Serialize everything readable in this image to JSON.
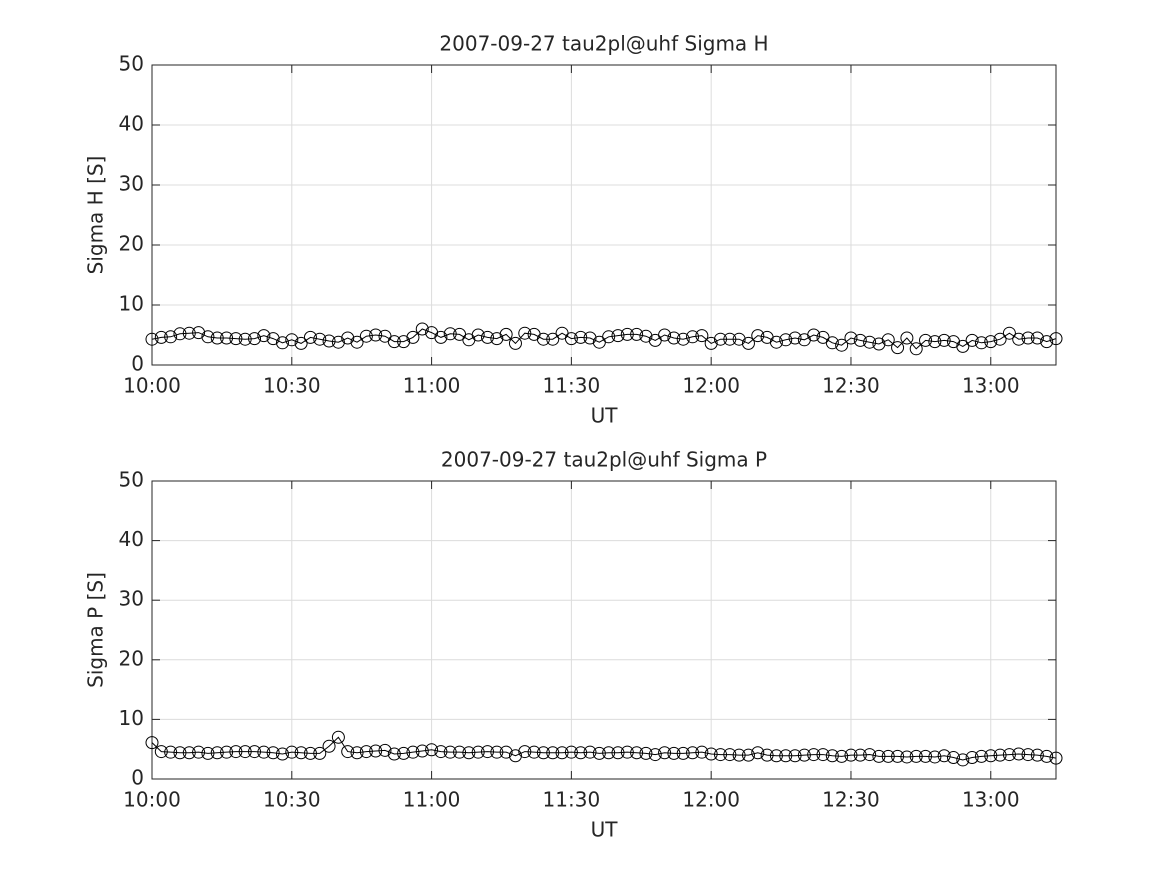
{
  "chart_data": [
    {
      "type": "line",
      "title": "2007-09-27  tau2pl@uhf Sigma H",
      "x_label": "UT",
      "y_label": "Sigma H [S]",
      "xlim": [
        "10:00",
        "13:14"
      ],
      "xticks": [
        "10:00",
        "10:30",
        "11:00",
        "11:30",
        "12:00",
        "12:30",
        "13:00"
      ],
      "ylim": [
        0,
        50
      ],
      "yticks": [
        0,
        10,
        20,
        30,
        40,
        50
      ],
      "grid": true,
      "marker": "circle",
      "x": [
        "10:00",
        "10:02",
        "10:04",
        "10:06",
        "10:08",
        "10:10",
        "10:12",
        "10:14",
        "10:16",
        "10:18",
        "10:20",
        "10:22",
        "10:24",
        "10:26",
        "10:28",
        "10:30",
        "10:32",
        "10:34",
        "10:36",
        "10:38",
        "10:40",
        "10:42",
        "10:44",
        "10:46",
        "10:48",
        "10:50",
        "10:52",
        "10:54",
        "10:56",
        "10:58",
        "11:00",
        "11:02",
        "11:04",
        "11:06",
        "11:08",
        "11:10",
        "11:12",
        "11:14",
        "11:16",
        "11:18",
        "11:20",
        "11:22",
        "11:24",
        "11:26",
        "11:28",
        "11:30",
        "11:32",
        "11:34",
        "11:36",
        "11:38",
        "11:40",
        "11:42",
        "11:44",
        "11:46",
        "11:48",
        "11:50",
        "11:52",
        "11:54",
        "11:56",
        "11:58",
        "12:00",
        "12:02",
        "12:04",
        "12:06",
        "12:08",
        "12:10",
        "12:12",
        "12:14",
        "12:16",
        "12:18",
        "12:20",
        "12:22",
        "12:24",
        "12:26",
        "12:28",
        "12:30",
        "12:32",
        "12:34",
        "12:36",
        "12:38",
        "12:40",
        "12:42",
        "12:44",
        "12:46",
        "12:48",
        "12:50",
        "12:52",
        "12:54",
        "12:56",
        "12:58",
        "13:00",
        "13:02",
        "13:04",
        "13:06",
        "13:08",
        "13:10",
        "13:12",
        "13:14"
      ],
      "series": [
        {
          "color": "#000000",
          "values": [
            4.3,
            4.6,
            4.7,
            5.2,
            5.3,
            5.4,
            4.7,
            4.5,
            4.5,
            4.4,
            4.3,
            4.4,
            4.9,
            4.4,
            3.7,
            4.2,
            3.6,
            4.6,
            4.3,
            4.0,
            3.8,
            4.5,
            3.8,
            4.8,
            5.0,
            4.8,
            3.9,
            3.9,
            4.6,
            6.0,
            5.4,
            4.6,
            5.2,
            5.1,
            4.2,
            5.0,
            4.6,
            4.4,
            5.1,
            3.6,
            5.3,
            5.1,
            4.3,
            4.3,
            5.3,
            4.4,
            4.6,
            4.5,
            3.8,
            4.7,
            4.9,
            5.1,
            5.1,
            4.8,
            4.1,
            5.0,
            4.5,
            4.3,
            4.7,
            4.9,
            3.6,
            4.3,
            4.3,
            4.3,
            3.6,
            4.9,
            4.6,
            3.8,
            4.2,
            4.5,
            4.2,
            5.0,
            4.6,
            3.7,
            3.3,
            4.5,
            4.1,
            3.8,
            3.5,
            4.2,
            2.9,
            4.5,
            2.7,
            4.1,
            3.9,
            4.1,
            3.9,
            3.1,
            4.1,
            3.7,
            3.9,
            4.3,
            5.3,
            4.3,
            4.5,
            4.5,
            3.9,
            4.4
          ]
        }
      ]
    },
    {
      "type": "line",
      "title": "2007-09-27  tau2pl@uhf Sigma P",
      "x_label": "UT",
      "y_label": "Sigma P [S]",
      "xlim": [
        "10:00",
        "13:14"
      ],
      "xticks": [
        "10:00",
        "10:30",
        "11:00",
        "11:30",
        "12:00",
        "12:30",
        "13:00"
      ],
      "ylim": [
        0,
        50
      ],
      "yticks": [
        0,
        10,
        20,
        30,
        40,
        50
      ],
      "grid": true,
      "marker": "circle",
      "x": [
        "10:00",
        "10:02",
        "10:04",
        "10:06",
        "10:08",
        "10:10",
        "10:12",
        "10:14",
        "10:16",
        "10:18",
        "10:20",
        "10:22",
        "10:24",
        "10:26",
        "10:28",
        "10:30",
        "10:32",
        "10:34",
        "10:36",
        "10:38",
        "10:40",
        "10:42",
        "10:44",
        "10:46",
        "10:48",
        "10:50",
        "10:52",
        "10:54",
        "10:56",
        "10:58",
        "11:00",
        "11:02",
        "11:04",
        "11:06",
        "11:08",
        "11:10",
        "11:12",
        "11:14",
        "11:16",
        "11:18",
        "11:20",
        "11:22",
        "11:24",
        "11:26",
        "11:28",
        "11:30",
        "11:32",
        "11:34",
        "11:36",
        "11:38",
        "11:40",
        "11:42",
        "11:44",
        "11:46",
        "11:48",
        "11:50",
        "11:52",
        "11:54",
        "11:56",
        "11:58",
        "12:00",
        "12:02",
        "12:04",
        "12:06",
        "12:08",
        "12:10",
        "12:12",
        "12:14",
        "12:16",
        "12:18",
        "12:20",
        "12:22",
        "12:24",
        "12:26",
        "12:28",
        "12:30",
        "12:32",
        "12:34",
        "12:36",
        "12:38",
        "12:40",
        "12:42",
        "12:44",
        "12:46",
        "12:48",
        "12:50",
        "12:52",
        "12:54",
        "12:56",
        "12:58",
        "13:00",
        "13:02",
        "13:04",
        "13:06",
        "13:08",
        "13:10",
        "13:12",
        "13:14"
      ],
      "series": [
        {
          "color": "#000000",
          "values": [
            6.1,
            4.6,
            4.5,
            4.4,
            4.4,
            4.5,
            4.3,
            4.4,
            4.5,
            4.6,
            4.6,
            4.6,
            4.5,
            4.4,
            4.2,
            4.5,
            4.4,
            4.3,
            4.3,
            5.5,
            7.0,
            4.6,
            4.4,
            4.6,
            4.7,
            4.8,
            4.2,
            4.3,
            4.5,
            4.7,
            4.9,
            4.6,
            4.5,
            4.5,
            4.4,
            4.5,
            4.6,
            4.5,
            4.5,
            3.9,
            4.6,
            4.5,
            4.4,
            4.4,
            4.4,
            4.5,
            4.4,
            4.5,
            4.3,
            4.4,
            4.4,
            4.5,
            4.4,
            4.3,
            4.1,
            4.4,
            4.3,
            4.3,
            4.4,
            4.5,
            4.2,
            4.1,
            4.1,
            4.0,
            4.0,
            4.4,
            4.0,
            3.9,
            3.9,
            3.9,
            4.0,
            4.1,
            4.1,
            3.9,
            3.8,
            4.0,
            4.0,
            4.1,
            3.8,
            3.8,
            3.8,
            3.7,
            3.8,
            3.8,
            3.7,
            3.9,
            3.6,
            3.2,
            3.6,
            3.8,
            3.9,
            4.0,
            4.1,
            4.2,
            4.1,
            4.0,
            3.8,
            3.5
          ]
        }
      ]
    }
  ]
}
